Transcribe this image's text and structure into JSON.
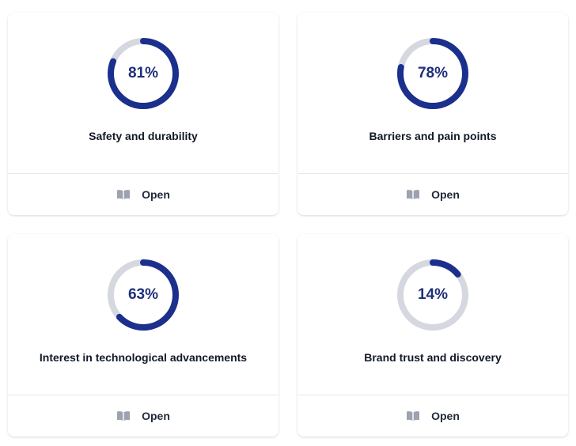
{
  "colors": {
    "track": "#d5d8df",
    "progress": "#1b2f8c",
    "label": "#1e2f7a",
    "icon": "#9ca3af"
  },
  "cards": [
    {
      "percent_label": "81%",
      "percent": 81,
      "title": "Safety and durability",
      "action_label": "Open",
      "action_icon": "book-open-icon"
    },
    {
      "percent_label": "78%",
      "percent": 78,
      "title": "Barriers and pain points",
      "action_label": "Open",
      "action_icon": "book-open-icon"
    },
    {
      "percent_label": "63%",
      "percent": 63,
      "title": "Interest in technological advancements",
      "action_label": "Open",
      "action_icon": "book-open-icon"
    },
    {
      "percent_label": "14%",
      "percent": 14,
      "title": "Brand trust and discovery",
      "action_label": "Open",
      "action_icon": "book-open-icon"
    }
  ]
}
